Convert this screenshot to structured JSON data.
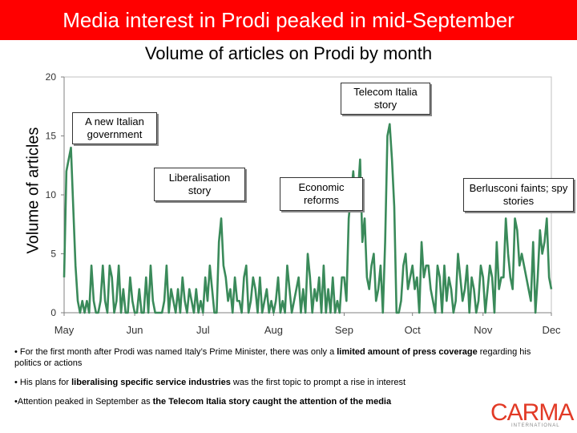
{
  "header": {
    "title": "Media interest in Prodi peaked in mid-September"
  },
  "chart_data": {
    "type": "line",
    "title": "Volume of articles on Prodi by month",
    "xlabel": "",
    "ylabel": "Volume of articles",
    "ylim": [
      0,
      20
    ],
    "yticks": [
      0,
      5,
      10,
      15,
      20
    ],
    "xlim": [
      0,
      214
    ],
    "month_ticks": [
      {
        "label": "May",
        "day": 0
      },
      {
        "label": "Jun",
        "day": 31
      },
      {
        "label": "Jul",
        "day": 61
      },
      {
        "label": "Aug",
        "day": 92
      },
      {
        "label": "Sep",
        "day": 123
      },
      {
        "label": "Oct",
        "day": 153
      },
      {
        "label": "Nov",
        "day": 184
      },
      {
        "label": "Dec",
        "day": 214
      }
    ],
    "series": [
      {
        "name": "Articles",
        "color": "#3a8a5a",
        "values": [
          3,
          12,
          13,
          14,
          9,
          4,
          1,
          0,
          1,
          0,
          1,
          0,
          4,
          1,
          0,
          0,
          1,
          4,
          1,
          0,
          4,
          3,
          0,
          1,
          4,
          0,
          2,
          0,
          0,
          3,
          1,
          0,
          0,
          2,
          0,
          0,
          3,
          0,
          4,
          1,
          0,
          0,
          0,
          0,
          1,
          4,
          0,
          2,
          1,
          0,
          2,
          0,
          3,
          1,
          0,
          2,
          1,
          0,
          2,
          0,
          1,
          0,
          3,
          1,
          4,
          2,
          0,
          0,
          6,
          8,
          4,
          3,
          1,
          2,
          0,
          3,
          1,
          1,
          0,
          3,
          4,
          0,
          1,
          3,
          2,
          0,
          3,
          0,
          1,
          2,
          0,
          1,
          0,
          1,
          3,
          0,
          1,
          0,
          4,
          2,
          0,
          1,
          2,
          3,
          0,
          2,
          0,
          5,
          3,
          0,
          2,
          1,
          3,
          0,
          4,
          0,
          2,
          0,
          3,
          0,
          1,
          0,
          3,
          3,
          1,
          8,
          10,
          12,
          9,
          10,
          13,
          6,
          8,
          3,
          2,
          4,
          5,
          1,
          2,
          4,
          0,
          6,
          15,
          16,
          13,
          9,
          0,
          0,
          1,
          4,
          5,
          2,
          3,
          4,
          2,
          3,
          0,
          6,
          3,
          4,
          4,
          2,
          1,
          0,
          4,
          3,
          0,
          4,
          1,
          3,
          2,
          0,
          1,
          5,
          3,
          1,
          2,
          4,
          0,
          3,
          2,
          0,
          1,
          4,
          3,
          0,
          2,
          4,
          3,
          0,
          6,
          2,
          3,
          3,
          8,
          5,
          3,
          2,
          8,
          7,
          4,
          5,
          4,
          3,
          2,
          1,
          6,
          0,
          3,
          7,
          5,
          6,
          8,
          3,
          2
        ]
      }
    ],
    "annotations": [
      {
        "id": "new-government",
        "text": "A new Italian government"
      },
      {
        "id": "liberalisation",
        "text": "Liberalisation story"
      },
      {
        "id": "economic-reforms",
        "text": "Economic reforms"
      },
      {
        "id": "telecom-italia",
        "text": "Telecom Italia story"
      },
      {
        "id": "berlusconi",
        "text": "Berlusconi faints; spy stories"
      }
    ]
  },
  "bullets": [
    {
      "parts": [
        {
          "text": "• For the first month after Prodi was named Italy’s Prime Minister, there was only a ",
          "bold": false
        },
        {
          "text": "limited amount of press coverage",
          "bold": true
        },
        {
          "text": " regarding his politics or actions",
          "bold": false
        }
      ]
    },
    {
      "parts": [
        {
          "text": "• His plans for ",
          "bold": false
        },
        {
          "text": "liberalising specific service industries",
          "bold": true
        },
        {
          "text": " was the first topic to prompt a rise in interest",
          "bold": false
        }
      ]
    },
    {
      "parts": [
        {
          "text": "•Attention peaked in September as ",
          "bold": false
        },
        {
          "text": "the Telecom Italia story caught the attention of the media",
          "bold": true
        }
      ]
    }
  ],
  "logo": {
    "word": "CARMA",
    "sub": "INTERNATIONAL"
  }
}
